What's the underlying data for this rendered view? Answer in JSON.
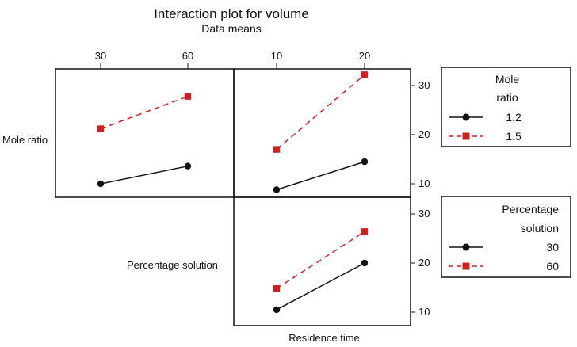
{
  "chart_data": {
    "type": "line",
    "title": "Interaction plot for volume",
    "subtitle": "Data means",
    "factors": [
      "Mole ratio",
      "Percentage solution",
      "Residence time"
    ],
    "xlabel": "Residence time",
    "colors": {
      "low": "#111111",
      "high": "#cc2222"
    },
    "panels": [
      {
        "id": "moleratio-by-percentage",
        "row_factor": "Mole ratio",
        "x_factor": "Percentage solution",
        "x": [
          "30",
          "60"
        ],
        "ylim": [
          7,
          34
        ],
        "series": [
          {
            "name": "1.2",
            "values": [
              10.0,
              13.6
            ]
          },
          {
            "name": "1.5",
            "values": [
              21.2,
              27.8
            ]
          }
        ]
      },
      {
        "id": "moleratio-by-residence",
        "row_factor": "Mole ratio",
        "x_factor": "Residence time",
        "x": [
          "10",
          "20"
        ],
        "ylim": [
          7,
          34
        ],
        "series": [
          {
            "name": "1.2",
            "values": [
              8.8,
              14.5
            ]
          },
          {
            "name": "1.5",
            "values": [
              17.0,
              32.2
            ]
          }
        ]
      },
      {
        "id": "percentage-by-residence",
        "row_factor": "Percentage solution",
        "x_factor": "Residence time",
        "x": [
          "10",
          "20"
        ],
        "ylim": [
          7,
          34
        ],
        "series": [
          {
            "name": "30",
            "values": [
              10.5,
              20.0
            ]
          },
          {
            "name": "60",
            "values": [
              14.8,
              26.4
            ]
          }
        ]
      }
    ],
    "y_ticks": [
      "10",
      "20",
      "30"
    ],
    "legends": [
      {
        "title_lines": [
          "Mole",
          "ratio"
        ],
        "entries": [
          "1.2",
          "1.5"
        ]
      },
      {
        "title_lines": [
          "Percentage",
          "solution"
        ],
        "entries": [
          "30",
          "60"
        ]
      }
    ]
  }
}
